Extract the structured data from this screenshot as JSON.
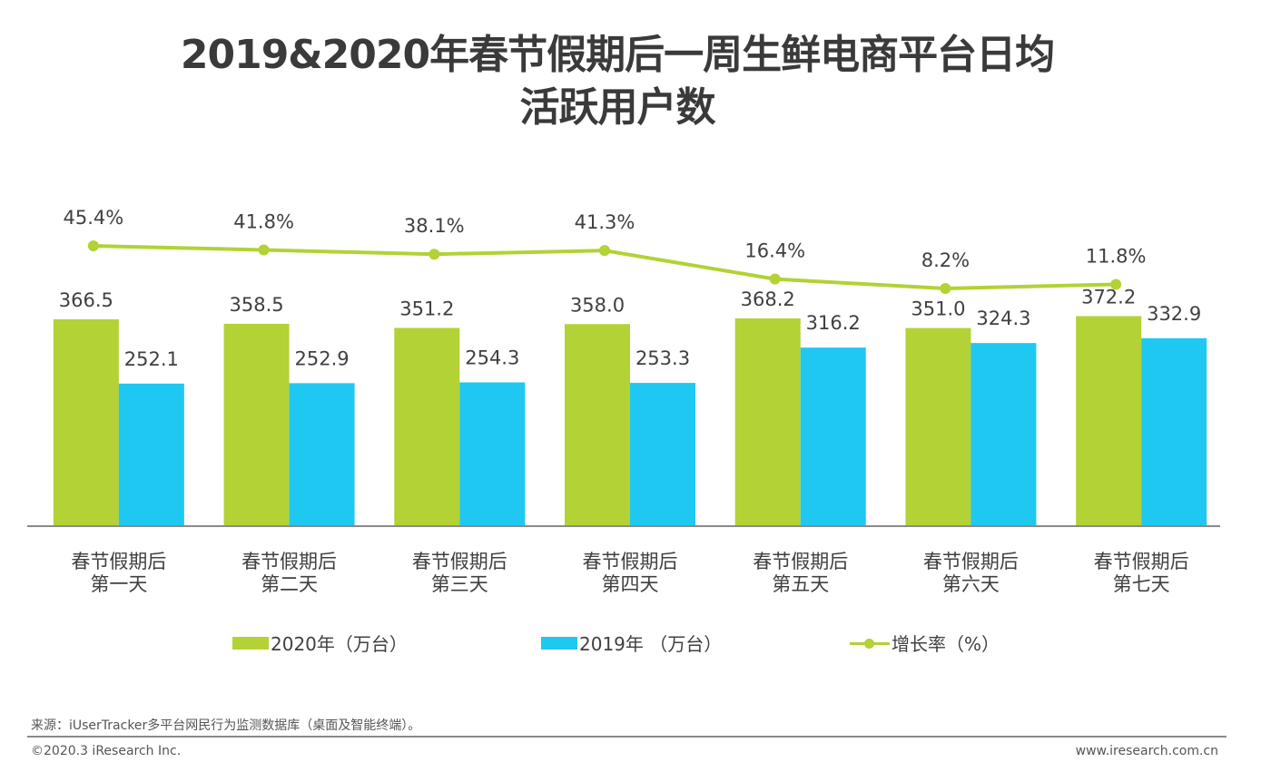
{
  "title": {
    "line1": "2019&2020年春节假期后一周生鲜电商平台日均",
    "line2": "活跃用户数"
  },
  "chart_data": {
    "type": "bar",
    "title": "2019&2020年春节假期后一周生鲜电商平台日均活跃用户数",
    "categories": [
      [
        "春节假期后",
        "第一天"
      ],
      [
        "春节假期后",
        "第二天"
      ],
      [
        "春节假期后",
        "第三天"
      ],
      [
        "春节假期后",
        "第四天"
      ],
      [
        "春节假期后",
        "第五天"
      ],
      [
        "春节假期后",
        "第六天"
      ],
      [
        "春节假期后",
        "第七天"
      ]
    ],
    "series": [
      {
        "name": "2020年（万台）",
        "type": "bar",
        "color": "#b2d235",
        "values": [
          366.5,
          358.5,
          351.2,
          358.0,
          368.2,
          351.0,
          372.2
        ],
        "labels": [
          "366.5",
          "358.5",
          "351.2",
          "358.0",
          "368.2",
          "351.0",
          "372.2"
        ]
      },
      {
        "name": "2019年 （万台）",
        "type": "bar",
        "color": "#1fc8f0",
        "values": [
          252.1,
          252.9,
          254.3,
          253.3,
          316.2,
          324.3,
          332.9
        ],
        "labels": [
          "252.1",
          "252.9",
          "254.3",
          "253.3",
          "316.2",
          "324.3",
          "332.9"
        ]
      },
      {
        "name": "增长率（%）",
        "type": "line",
        "color": "#b2d235",
        "values": [
          45.4,
          41.8,
          38.1,
          41.3,
          16.4,
          8.2,
          11.8
        ],
        "labels": [
          "45.4%",
          "41.8%",
          "38.1%",
          "41.3%",
          "16.4%",
          "8.2%",
          "11.8%"
        ]
      }
    ],
    "xlabel": "",
    "ylabel": "",
    "ylim": [
      0,
      500
    ],
    "y2lim": [
      -150,
      60
    ],
    "grid": false,
    "legend": "bottom"
  },
  "legend": {
    "items": [
      "2020年（万台）",
      "2019年 （万台）",
      "增长率（%）"
    ]
  },
  "footer": {
    "source": "来源：iUserTracker多平台网民行为监测数据库（桌面及智能终端）。",
    "copyright": "©2020.3 iResearch Inc.",
    "url": "www.iresearch.com.cn"
  }
}
